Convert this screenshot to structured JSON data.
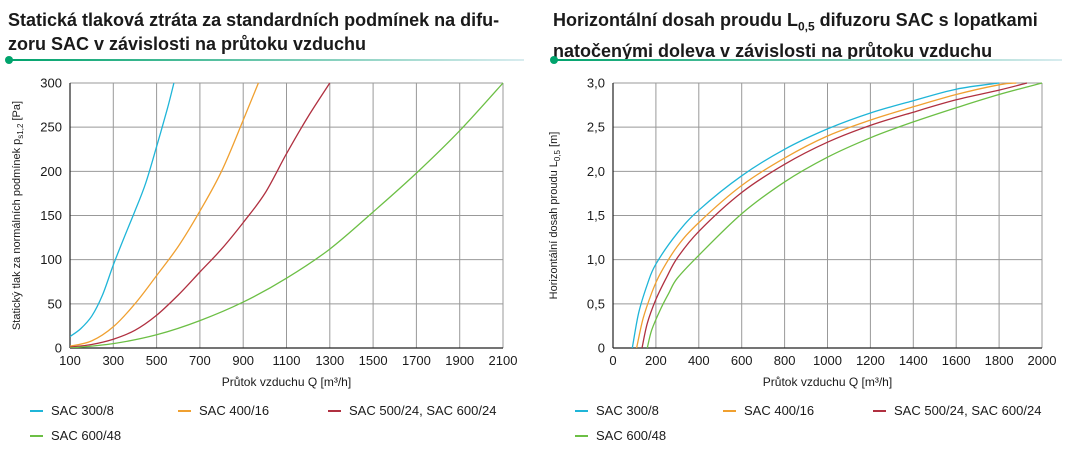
{
  "theme": {
    "accent_gradient": [
      "#00a36c",
      "#d8ecef"
    ],
    "grid": "#999999",
    "axis": "#222222"
  },
  "left": {
    "title_lines": [
      "Statická tlaková ztráta za standardních podmínek na difu-",
      "zoru SAC v závislosti na průtoku vzduchu"
    ]
  },
  "right": {
    "title_line1_a": "Horizontální dosah proudu L",
    "title_line1_sub": "0,5",
    "title_line1_b": " difuzoru SAC s lopatkami",
    "title_line2": "natočenými doleva v závislosti na průtoku vzduchu"
  },
  "chart_data": [
    {
      "type": "line",
      "xlabel": "Průtok vzduchu Q [m³/h]",
      "ylabel": "Statický tlak za normálních podmínek p",
      "ylabel_sub": "s1,2",
      "ylabel_unit": " [Pa]",
      "xlim": [
        100,
        2100
      ],
      "ylim": [
        0,
        300
      ],
      "xticks": [
        100,
        300,
        500,
        700,
        900,
        1100,
        1300,
        1500,
        1700,
        1900,
        2100
      ],
      "yticks": [
        0,
        50,
        100,
        150,
        200,
        250,
        300
      ],
      "xtick_labels": [
        "100",
        "300",
        "500",
        "700",
        "900",
        "1100",
        "1300",
        "1500",
        "1700",
        "1900",
        "2100"
      ],
      "ytick_labels": [
        "0",
        "50",
        "100",
        "150",
        "200",
        "250",
        "300"
      ],
      "grid": true,
      "series": [
        {
          "name": "SAC 300/8",
          "color": "#1fb5d8",
          "x": [
            100,
            150,
            200,
            250,
            300,
            350,
            400,
            450,
            500,
            550,
            580
          ],
          "y": [
            13,
            22,
            36,
            60,
            94,
            125,
            155,
            187,
            228,
            271,
            300
          ]
        },
        {
          "name": "SAC 400/16",
          "color": "#f0a030",
          "x": [
            100,
            200,
            300,
            400,
            500,
            600,
            700,
            800,
            900,
            970
          ],
          "y": [
            2,
            8,
            24,
            50,
            82,
            115,
            155,
            200,
            258,
            300
          ]
        },
        {
          "name": "SAC 500/24,  SAC 600/24",
          "color": "#b03040",
          "x": [
            100,
            200,
            300,
            400,
            500,
            600,
            700,
            800,
            900,
            1000,
            1100,
            1200,
            1300
          ],
          "y": [
            1,
            4,
            10,
            20,
            37,
            60,
            86,
            112,
            142,
            175,
            220,
            262,
            300
          ]
        },
        {
          "name": "SAC 600/48",
          "color": "#6cbf45",
          "x": [
            100,
            300,
            500,
            700,
            900,
            1100,
            1300,
            1500,
            1700,
            1900,
            2100
          ],
          "y": [
            0,
            5,
            15,
            31,
            52,
            79,
            112,
            154,
            198,
            246,
            300
          ]
        }
      ],
      "legend": "bottom"
    },
    {
      "type": "line",
      "xlabel": "Průtok vzduchu Q [m³/h]",
      "ylabel": "Horizontální dosah proudu L",
      "ylabel_sub": "0,5",
      "ylabel_unit": " [m]",
      "xlim": [
        0,
        2000
      ],
      "ylim": [
        0,
        3.0
      ],
      "xticks": [
        0,
        200,
        400,
        600,
        800,
        1000,
        1200,
        1400,
        1600,
        1800,
        2000
      ],
      "yticks": [
        0,
        0.5,
        1.0,
        1.5,
        2.0,
        2.5,
        3.0
      ],
      "xtick_labels": [
        "0",
        "200",
        "400",
        "600",
        "800",
        "1000",
        "1200",
        "1400",
        "1600",
        "1800",
        "2000"
      ],
      "ytick_labels": [
        "0",
        "0,5",
        "1,0",
        "1,5",
        "2,0",
        "2,5",
        "3,0"
      ],
      "grid": true,
      "series": [
        {
          "name": "SAC 300/8",
          "color": "#1fb5d8",
          "x": [
            90,
            120,
            160,
            200,
            300,
            400,
            600,
            800,
            1000,
            1200,
            1400,
            1600,
            1800
          ],
          "y": [
            0,
            0.4,
            0.72,
            0.95,
            1.3,
            1.56,
            1.95,
            2.25,
            2.48,
            2.66,
            2.8,
            2.93,
            3.0
          ]
        },
        {
          "name": "SAC 400/16",
          "color": "#f0a030",
          "x": [
            110,
            140,
            180,
            220,
            300,
            400,
            600,
            800,
            1000,
            1200,
            1400,
            1600,
            1800,
            1880
          ],
          "y": [
            0,
            0.33,
            0.62,
            0.84,
            1.15,
            1.42,
            1.84,
            2.15,
            2.4,
            2.58,
            2.73,
            2.87,
            2.98,
            3.0
          ]
        },
        {
          "name": "SAC 500/24,  SAC 600/24",
          "color": "#b03040",
          "x": [
            135,
            160,
            200,
            250,
            300,
            400,
            600,
            800,
            1000,
            1200,
            1400,
            1600,
            1800,
            1930
          ],
          "y": [
            0,
            0.28,
            0.55,
            0.8,
            1.02,
            1.32,
            1.76,
            2.08,
            2.33,
            2.52,
            2.67,
            2.81,
            2.92,
            3.0
          ]
        },
        {
          "name": "SAC 600/48",
          "color": "#6cbf45",
          "x": [
            160,
            180,
            220,
            260,
            300,
            400,
            600,
            800,
            1000,
            1200,
            1400,
            1600,
            1800,
            2000
          ],
          "y": [
            0,
            0.2,
            0.43,
            0.62,
            0.79,
            1.05,
            1.52,
            1.88,
            2.16,
            2.38,
            2.56,
            2.72,
            2.87,
            3.0
          ]
        }
      ],
      "legend": "bottom"
    }
  ]
}
